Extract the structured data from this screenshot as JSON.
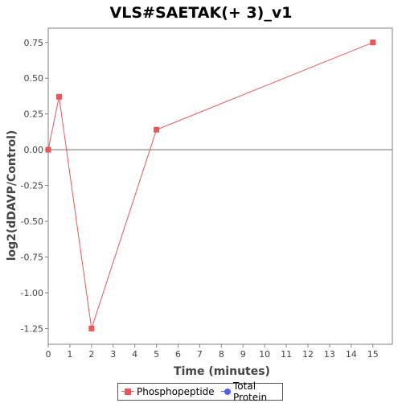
{
  "chart_data": {
    "type": "line",
    "title": "VLS#SAETAK(+ 3)_v1",
    "xlabel": "Time (minutes)",
    "ylabel": "log2(dDAVP/Control)",
    "xlim": [
      0,
      15.9
    ],
    "ylim": [
      -1.36,
      0.85
    ],
    "x_ticks": [
      0,
      1,
      2,
      3,
      4,
      5,
      6,
      7,
      8,
      9,
      10,
      11,
      12,
      13,
      14,
      15
    ],
    "y_ticks": [
      0.75,
      0.5,
      0.25,
      0.0,
      -0.25,
      -0.5,
      -0.75,
      -1.0,
      -1.25
    ],
    "y_tick_labels": [
      "0.75",
      "0.50",
      "0.25",
      "0.00",
      "-0.25",
      "-0.50",
      "-0.75",
      "-1.00",
      "-1.25"
    ],
    "zero_line": true,
    "grid": false,
    "legend_position": "bottom-center",
    "series": [
      {
        "name": "Phosphopeptide",
        "color": "#e8575a",
        "marker": "square",
        "x": [
          0,
          0.5,
          2,
          5,
          15
        ],
        "y": [
          0.0,
          0.37,
          -1.25,
          0.14,
          0.75
        ]
      }
    ],
    "legend": [
      {
        "name": "Phosphopeptide",
        "color": "#e8575a",
        "marker": "square"
      },
      {
        "name": "Total Protein",
        "color": "#5560e8",
        "marker": "circle"
      }
    ]
  }
}
